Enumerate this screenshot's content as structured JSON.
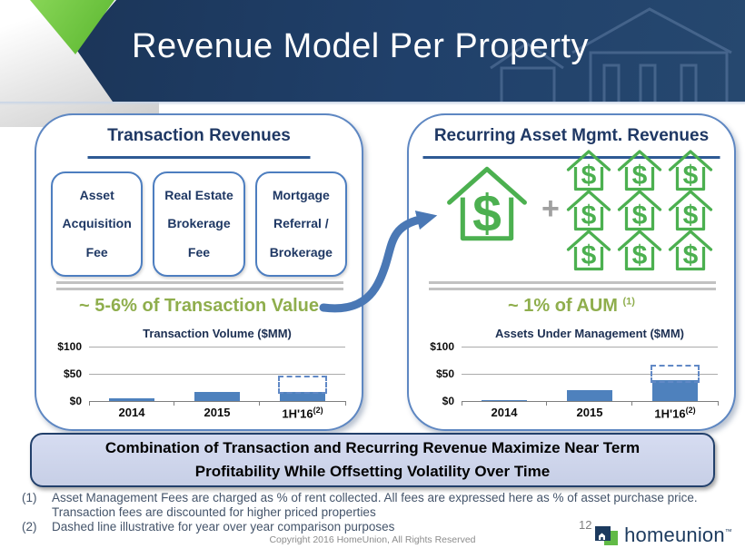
{
  "header": {
    "title": "Revenue Model Per Property"
  },
  "left_panel": {
    "title": "Transaction Revenues",
    "fee_boxes": [
      "Asset\nAcquisition\nFee",
      "Real Estate\nBrokerage\nFee",
      "Mortgage\nReferral /\nBrokerage"
    ],
    "note": "~ 5-6% of Transaction Value"
  },
  "right_panel": {
    "title": "Recurring Asset Mgmt. Revenues",
    "plus_sign": "+",
    "house_symbol": "$",
    "house_count": 9,
    "note": "~ 1% of AUM",
    "note_sup": "(1)"
  },
  "chart_data": [
    {
      "type": "bar",
      "title": "Transaction Volume ($MM)",
      "categories": [
        {
          "label": "2014"
        },
        {
          "label": "2015"
        },
        {
          "label": "1H'16",
          "sup": "(2)"
        }
      ],
      "values": [
        5,
        16,
        16
      ],
      "dashed_projection": {
        "category": "1H'16",
        "from": 13,
        "to": 47
      },
      "ylabel_ticks": [
        {
          "label": "$100",
          "value": 100
        },
        {
          "label": "$50",
          "value": 50
        },
        {
          "label": "$0",
          "value": 0
        }
      ],
      "ylim": [
        0,
        100
      ],
      "grid": true,
      "legend": false,
      "bar_color": "#4E81BD"
    },
    {
      "type": "bar",
      "title": "Assets Under Management ($MM)",
      "categories": [
        {
          "label": "2014"
        },
        {
          "label": "2015"
        },
        {
          "label": "1H'16",
          "sup": "(2)"
        }
      ],
      "values": [
        2,
        20,
        38
      ],
      "dashed_projection": {
        "category": "1H'16",
        "from": 33,
        "to": 67
      },
      "ylabel_ticks": [
        {
          "label": "$100",
          "value": 100
        },
        {
          "label": "$50",
          "value": 50
        },
        {
          "label": "$0",
          "value": 0
        }
      ],
      "ylim": [
        0,
        100
      ],
      "grid": true,
      "legend": false,
      "bar_color": "#4E81BD"
    }
  ],
  "conclusion": "Combination of Transaction and Recurring Revenue Maximize Near Term\nProfitability While Offsetting Volatility Over Time",
  "footnotes": [
    {
      "num": "(1)",
      "text": "Asset Management Fees are charged as % of rent collected. All fees are expressed here as % of asset purchase price. Transaction fees are discounted for higher priced properties"
    },
    {
      "num": "(2)",
      "text": "Dashed line illustrative for year over year comparison purposes"
    }
  ],
  "footer": {
    "copyright": "Copyright 2016 HomeUnion, All Rights Reserved",
    "page_number": "12",
    "logo_text": "homeunion",
    "logo_tm": "™"
  },
  "colors": {
    "banner_navy": "#1F3A60",
    "corner_green": "#6FCC3F",
    "panel_border_blue": "#5E87C2",
    "navy_text": "#1F3864",
    "underline_blue": "#2E5A94",
    "divider_gray": "#C2C2C2",
    "note_green": "#8FAE4D",
    "house_green": "#4CB050",
    "bar_blue": "#4E81BD",
    "arrow_blue": "#4A78B5",
    "conclusion_bg": "#CDD3E8",
    "footnote_color": "#44546A",
    "logo_navy": "#1C3A5E",
    "logo_green": "#61BA46"
  }
}
